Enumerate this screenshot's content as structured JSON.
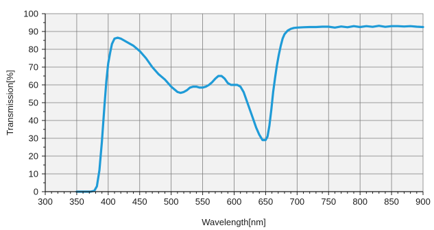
{
  "chart_data": {
    "type": "line",
    "title": "",
    "xlabel": "Wavelength[nm]",
    "ylabel": "Transmission[%]",
    "xlim": [
      300,
      900
    ],
    "ylim": [
      0,
      100
    ],
    "xticks": [
      300,
      350,
      400,
      450,
      500,
      550,
      600,
      650,
      700,
      750,
      800,
      850,
      900
    ],
    "yticks": [
      0,
      10,
      20,
      30,
      40,
      50,
      60,
      70,
      80,
      90,
      100
    ],
    "grid": true,
    "legend": "none",
    "series": [
      {
        "color": "#1f9bd7",
        "x": [
          350,
          365,
          372,
          378,
          382,
          386,
          390,
          394,
          397,
          400,
          403,
          406,
          410,
          415,
          420,
          425,
          430,
          440,
          450,
          460,
          470,
          480,
          490,
          500,
          505,
          510,
          515,
          520,
          525,
          530,
          535,
          540,
          545,
          550,
          555,
          560,
          565,
          570,
          575,
          580,
          585,
          590,
          595,
          600,
          605,
          610,
          615,
          620,
          625,
          630,
          635,
          640,
          645,
          650,
          653,
          656,
          659,
          662,
          665,
          668,
          671,
          674,
          677,
          680,
          685,
          690,
          695,
          700,
          710,
          720,
          730,
          740,
          750,
          760,
          770,
          780,
          790,
          800,
          810,
          820,
          830,
          840,
          850,
          860,
          870,
          880,
          890,
          900
        ],
        "y": [
          0,
          0,
          0,
          0.5,
          3,
          12,
          28,
          48,
          62,
          72,
          78,
          83,
          86,
          86.5,
          86,
          85,
          84,
          82,
          79,
          75,
          70,
          66,
          63,
          59,
          57.5,
          56,
          55.5,
          56,
          57,
          58.5,
          59,
          59,
          58.5,
          58.5,
          59,
          60,
          61.5,
          63.5,
          65,
          65,
          63.5,
          61,
          60,
          60,
          60,
          59,
          56,
          51,
          46,
          41,
          36,
          32,
          29,
          29,
          31,
          37,
          46,
          56,
          64,
          71,
          77,
          82,
          86,
          88.5,
          90.5,
          91.5,
          92,
          92.2,
          92.4,
          92.5,
          92.5,
          92.7,
          92.7,
          92.2,
          92.8,
          92.4,
          93,
          92.5,
          93,
          92.6,
          93.2,
          92.6,
          93,
          93,
          92.8,
          93,
          92.7,
          92.5
        ]
      }
    ]
  }
}
